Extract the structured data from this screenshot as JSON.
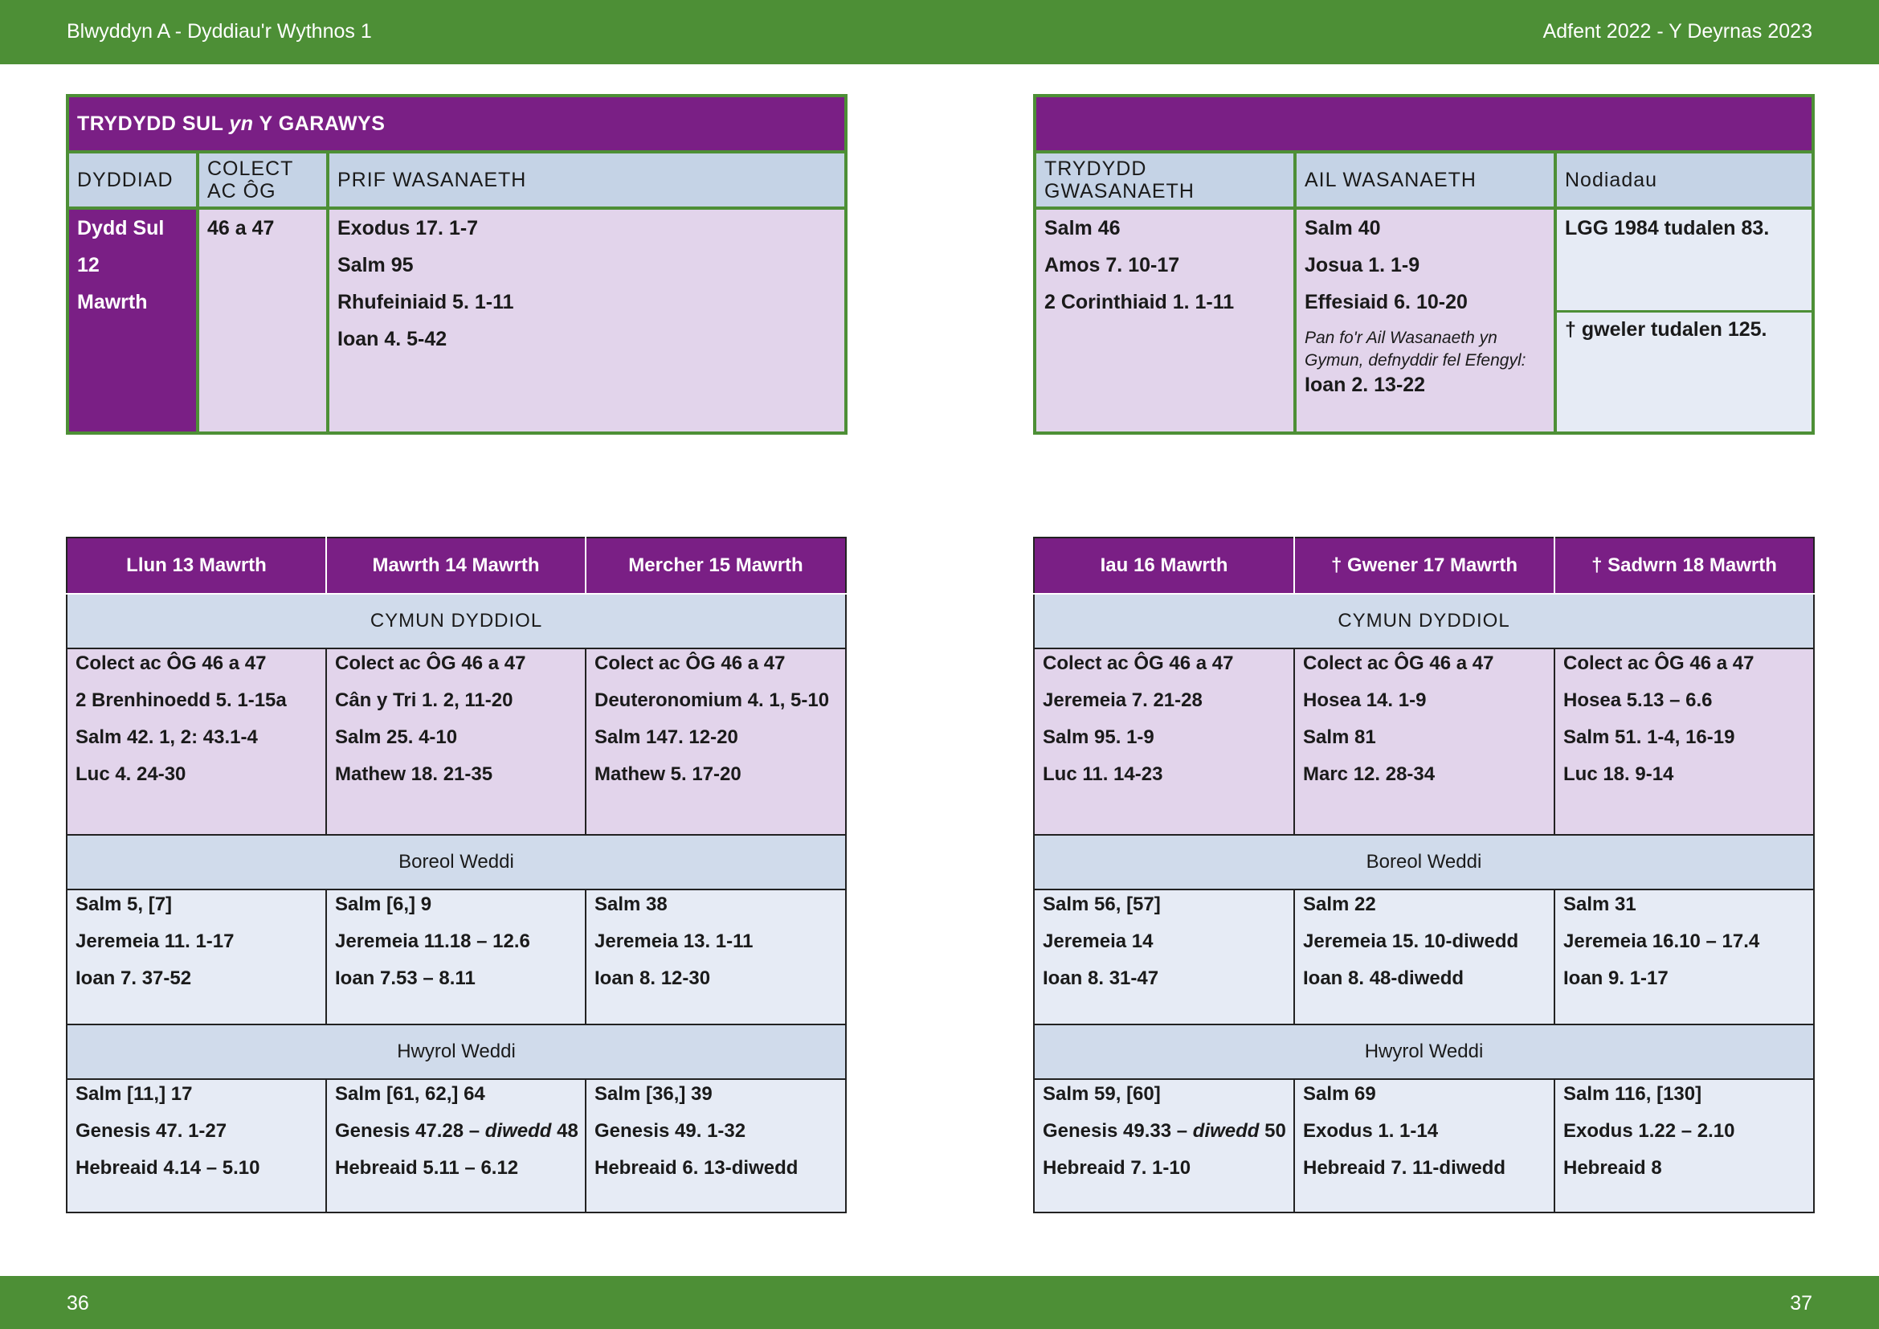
{
  "header": {
    "left": "Blwyddyn  A - Dyddiau'r Wythnos 1",
    "right": "Adfent  2022 - Y Deyrnas 2023"
  },
  "footer": {
    "left_page": "36",
    "right_page": "37"
  },
  "sunday": {
    "title_pre": "TRYDYDD SUL ",
    "title_em": "yn",
    "title_post": " Y GARAWYS",
    "columns": [
      "DYDDIAD",
      "COLECT AC ÔG",
      "PRIF WASANAETH"
    ],
    "date_lines": [
      "Dydd Sul",
      "12",
      "Mawrth"
    ],
    "collect": "46 a 47",
    "main_service": [
      "Exodus 17. 1-7",
      "Salm 95",
      "Rhufeiniaid 5. 1-11",
      "Ioan 4. 5-42"
    ]
  },
  "services": {
    "title": "",
    "columns": [
      "TRYDYDD GWASANAETH",
      "AIL WASANAETH",
      "Nodiadau"
    ],
    "third_service": [
      "Salm 46",
      "Amos 7. 10-17",
      "2 Corinthiaid 1. 1-11"
    ],
    "second_service": [
      "Salm 40",
      "Josua 1. 1-9",
      "Effesiaid 6. 10-20"
    ],
    "second_note": "Pan fo'r Ail Wasanaeth yn Gymun, defnyddir fel Efengyl:",
    "second_note_reading": "Ioan 2. 13-22",
    "notes": [
      "LGG 1984 tudalen 83.",
      "†  gweler tudalen 125."
    ]
  },
  "sections": {
    "cymun": "CYMUN DYDDIOL",
    "boreol": "Boreol Weddi",
    "hwyrol": "Hwyrol Weddi"
  },
  "week_left": {
    "days": [
      "Llun 13 Mawrth",
      "Mawrth 14 Mawrth",
      "Mercher 15 Mawrth"
    ],
    "cymun": [
      [
        "Colect ac ÔG 46 a 47",
        "2 Brenhinoedd 5. 1-15a",
        "Salm 42. 1, 2: 43.1-4",
        "Luc 4. 24-30"
      ],
      [
        "Colect ac ÔG 46 a 47",
        "Cân y Tri 1. 2, 11-20",
        "Salm 25. 4-10",
        "Mathew 18. 21-35"
      ],
      [
        "Colect ac ÔG 46 a 47",
        "Deuteronomium 4. 1, 5-10",
        "Salm 147. 12-20",
        "Mathew 5. 17-20"
      ]
    ],
    "boreol": [
      [
        "Salm 5, [7]",
        "Jeremeia 11. 1-17",
        "Ioan 7. 37-52"
      ],
      [
        "Salm [6,] 9",
        "Jeremeia 11.18 – 12.6",
        "Ioan 7.53 – 8.11"
      ],
      [
        "Salm 38",
        "Jeremeia 13. 1-11",
        "Ioan 8. 12-30"
      ]
    ],
    "hwyrol": [
      [
        "Salm [11,] 17",
        "Genesis 47. 1-27",
        "Hebreaid 4.14 – 5.10"
      ],
      [
        "Salm [61, 62,] 64",
        "Genesis 47.28 – ",
        "Hebreaid 5.11 – 6.12"
      ],
      [
        "Salm [36,] 39",
        "Genesis 49. 1-32",
        "Hebreaid 6. 13-diwedd"
      ]
    ],
    "hwyrol_italic": "diwedd",
    "hwyrol_tail": " 48"
  },
  "week_right": {
    "days": [
      "Iau 16 Mawrth",
      "† Gwener 17 Mawrth",
      "† Sadwrn 18 Mawrth"
    ],
    "cymun": [
      [
        "Colect ac ÔG 46 a 47",
        "Jeremeia 7. 21-28",
        "Salm 95. 1-9",
        "Luc 11. 14-23"
      ],
      [
        "Colect ac ÔG 46 a 47",
        "Hosea 14. 1-9",
        "Salm 81",
        "Marc 12. 28-34"
      ],
      [
        "Colect ac ÔG 46 a 47",
        "Hosea 5.13 – 6.6",
        "Salm 51. 1-4, 16-19",
        "Luc 18. 9-14"
      ]
    ],
    "boreol": [
      [
        "Salm 56, [57]",
        "Jeremeia 14",
        "Ioan 8. 31-47"
      ],
      [
        "Salm 22",
        "Jeremeia 15. 10-diwedd",
        "Ioan 8. 48-diwedd"
      ],
      [
        "Salm 31",
        "Jeremeia 16.10 – 17.4",
        "Ioan 9. 1-17"
      ]
    ],
    "hwyrol": [
      [
        "Salm 59, [60]",
        "Genesis 49.33 – ",
        "Hebreaid 7. 1-10"
      ],
      [
        "Salm 69",
        "Exodus 1. 1-14",
        "Hebreaid 7. 11-diwedd"
      ],
      [
        "Salm 116, [130]",
        "Exodus 1.22 – 2.10",
        "Hebreaid 8"
      ]
    ],
    "hwyrol_italic": "diwedd",
    "hwyrol_tail": " 50"
  }
}
